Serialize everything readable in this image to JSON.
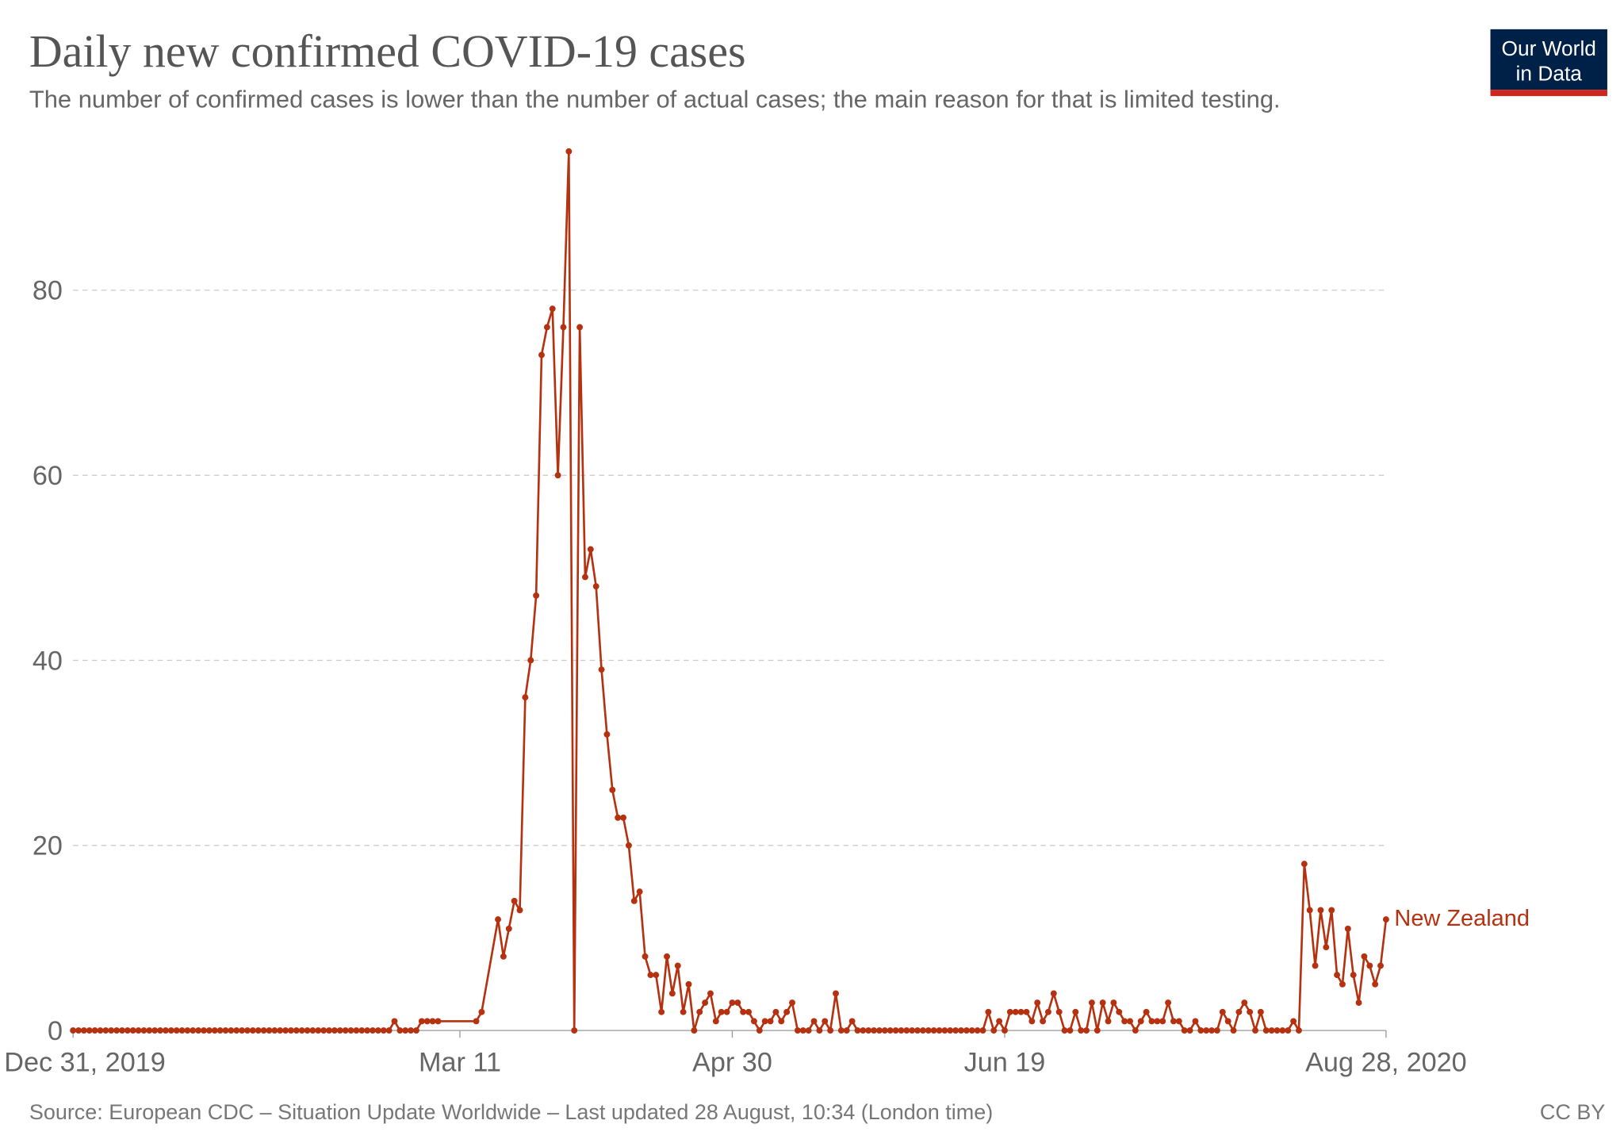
{
  "chart_data": {
    "type": "line",
    "title": "Daily new confirmed COVID-19 cases",
    "subtitle": "The number of confirmed cases is lower than the number of actual cases; the main reason for that is limited testing.",
    "source": "Source: European CDC – Situation Update Worldwide – Last updated 28 August, 10:34 (London time)",
    "x": [
      "2019-12-31",
      "2020-01-01",
      "2020-01-02",
      "2020-01-03",
      "2020-01-04",
      "2020-01-05",
      "2020-01-06",
      "2020-01-07",
      "2020-01-08",
      "2020-01-09",
      "2020-01-10",
      "2020-01-11",
      "2020-01-12",
      "2020-01-13",
      "2020-01-14",
      "2020-01-15",
      "2020-01-16",
      "2020-01-17",
      "2020-01-18",
      "2020-01-19",
      "2020-01-20",
      "2020-01-21",
      "2020-01-22",
      "2020-01-23",
      "2020-01-24",
      "2020-01-25",
      "2020-01-26",
      "2020-01-27",
      "2020-01-28",
      "2020-01-29",
      "2020-01-30",
      "2020-01-31",
      "2020-02-01",
      "2020-02-02",
      "2020-02-03",
      "2020-02-04",
      "2020-02-05",
      "2020-02-06",
      "2020-02-07",
      "2020-02-08",
      "2020-02-09",
      "2020-02-10",
      "2020-02-11",
      "2020-02-12",
      "2020-02-13",
      "2020-02-14",
      "2020-02-15",
      "2020-02-16",
      "2020-02-17",
      "2020-02-18",
      "2020-02-19",
      "2020-02-20",
      "2020-02-21",
      "2020-02-22",
      "2020-02-23",
      "2020-02-24",
      "2020-02-25",
      "2020-02-26",
      "2020-02-27",
      "2020-02-28",
      "2020-02-29",
      "2020-03-01",
      "2020-03-02",
      "2020-03-03",
      "2020-03-04",
      "2020-03-05",
      "2020-03-06",
      "2020-03-07",
      "2020-03-14",
      "2020-03-15",
      "2020-03-18",
      "2020-03-19",
      "2020-03-20",
      "2020-03-21",
      "2020-03-22",
      "2020-03-23",
      "2020-03-24",
      "2020-03-25",
      "2020-03-26",
      "2020-03-27",
      "2020-03-28",
      "2020-03-29",
      "2020-03-30",
      "2020-03-31",
      "2020-04-01",
      "2020-04-02",
      "2020-04-03",
      "2020-04-04",
      "2020-04-05",
      "2020-04-06",
      "2020-04-07",
      "2020-04-08",
      "2020-04-09",
      "2020-04-10",
      "2020-04-11",
      "2020-04-12",
      "2020-04-13",
      "2020-04-14",
      "2020-04-15",
      "2020-04-16",
      "2020-04-17",
      "2020-04-18",
      "2020-04-19",
      "2020-04-20",
      "2020-04-21",
      "2020-04-22",
      "2020-04-23",
      "2020-04-24",
      "2020-04-25",
      "2020-04-26",
      "2020-04-27",
      "2020-04-28",
      "2020-04-29",
      "2020-04-30",
      "2020-05-01",
      "2020-05-02",
      "2020-05-03",
      "2020-05-04",
      "2020-05-05",
      "2020-05-06",
      "2020-05-07",
      "2020-05-08",
      "2020-05-09",
      "2020-05-10",
      "2020-05-11",
      "2020-05-12",
      "2020-05-13",
      "2020-05-14",
      "2020-05-15",
      "2020-05-16",
      "2020-05-17",
      "2020-05-18",
      "2020-05-19",
      "2020-05-20",
      "2020-05-21",
      "2020-05-22",
      "2020-05-23",
      "2020-05-24",
      "2020-05-25",
      "2020-05-26",
      "2020-05-27",
      "2020-05-28",
      "2020-05-29",
      "2020-05-30",
      "2020-05-31",
      "2020-06-01",
      "2020-06-02",
      "2020-06-03",
      "2020-06-04",
      "2020-06-05",
      "2020-06-06",
      "2020-06-07",
      "2020-06-08",
      "2020-06-09",
      "2020-06-10",
      "2020-06-11",
      "2020-06-12",
      "2020-06-13",
      "2020-06-14",
      "2020-06-15",
      "2020-06-16",
      "2020-06-17",
      "2020-06-18",
      "2020-06-19",
      "2020-06-20",
      "2020-06-21",
      "2020-06-22",
      "2020-06-23",
      "2020-06-24",
      "2020-06-25",
      "2020-06-26",
      "2020-06-27",
      "2020-06-28",
      "2020-06-29",
      "2020-06-30",
      "2020-07-01",
      "2020-07-02",
      "2020-07-03",
      "2020-07-04",
      "2020-07-05",
      "2020-07-06",
      "2020-07-07",
      "2020-07-08",
      "2020-07-09",
      "2020-07-10",
      "2020-07-11",
      "2020-07-12",
      "2020-07-13",
      "2020-07-14",
      "2020-07-15",
      "2020-07-16",
      "2020-07-17",
      "2020-07-18",
      "2020-07-19",
      "2020-07-20",
      "2020-07-21",
      "2020-07-22",
      "2020-07-23",
      "2020-07-24",
      "2020-07-25",
      "2020-07-26",
      "2020-07-27",
      "2020-07-28",
      "2020-07-29",
      "2020-07-30",
      "2020-07-31",
      "2020-08-01",
      "2020-08-02",
      "2020-08-03",
      "2020-08-04",
      "2020-08-05",
      "2020-08-06",
      "2020-08-07",
      "2020-08-08",
      "2020-08-09",
      "2020-08-10",
      "2020-08-11",
      "2020-08-12",
      "2020-08-13",
      "2020-08-14",
      "2020-08-15",
      "2020-08-16",
      "2020-08-17",
      "2020-08-18",
      "2020-08-19",
      "2020-08-20",
      "2020-08-21",
      "2020-08-22",
      "2020-08-23",
      "2020-08-24",
      "2020-08-25",
      "2020-08-26",
      "2020-08-27",
      "2020-08-28"
    ],
    "series": [
      {
        "name": "New Zealand",
        "color": "#b5310f",
        "values": [
          0,
          0,
          0,
          0,
          0,
          0,
          0,
          0,
          0,
          0,
          0,
          0,
          0,
          0,
          0,
          0,
          0,
          0,
          0,
          0,
          0,
          0,
          0,
          0,
          0,
          0,
          0,
          0,
          0,
          0,
          0,
          0,
          0,
          0,
          0,
          0,
          0,
          0,
          0,
          0,
          0,
          0,
          0,
          0,
          0,
          0,
          0,
          0,
          0,
          0,
          0,
          0,
          0,
          0,
          0,
          0,
          0,
          0,
          0,
          1,
          0,
          0,
          0,
          0,
          1,
          1,
          1,
          1,
          1,
          2,
          12,
          8,
          11,
          14,
          13,
          36,
          40,
          47,
          73,
          76,
          78,
          60,
          76,
          95,
          0,
          76,
          49,
          52,
          48,
          39,
          32,
          26,
          23,
          23,
          20,
          14,
          15,
          8,
          6,
          6,
          2,
          8,
          4,
          7,
          2,
          5,
          0,
          2,
          3,
          4,
          1,
          2,
          2,
          3,
          3,
          2,
          2,
          1,
          0,
          1,
          1,
          2,
          1,
          2,
          3,
          0,
          0,
          0,
          1,
          0,
          1,
          0,
          4,
          0,
          0,
          1,
          0,
          0,
          0,
          0,
          0,
          0,
          0,
          0,
          0,
          0,
          0,
          0,
          0,
          0,
          0,
          0,
          0,
          0,
          0,
          0,
          0,
          0,
          0,
          0,
          2,
          0,
          1,
          0,
          2,
          2,
          2,
          2,
          1,
          3,
          1,
          2,
          4,
          2,
          0,
          0,
          2,
          0,
          0,
          3,
          0,
          3,
          1,
          3,
          2,
          1,
          1,
          0,
          1,
          2,
          1,
          1,
          1,
          3,
          1,
          1,
          0,
          0,
          1,
          0,
          0,
          0,
          0,
          2,
          1,
          0,
          2,
          3,
          2,
          0,
          2,
          0,
          0,
          0,
          0,
          0,
          1,
          0,
          18,
          13,
          7,
          13,
          9,
          13,
          6,
          5,
          11,
          6,
          3,
          8,
          7,
          5,
          7,
          12
        ]
      }
    ],
    "xlim": [
      "2019-12-31",
      "2020-08-28"
    ],
    "xticks": [
      {
        "value": "2019-12-31",
        "label": "Dec 31, 2019"
      },
      {
        "value": "2020-03-11",
        "label": "Mar 11"
      },
      {
        "value": "2020-04-30",
        "label": "Apr 30"
      },
      {
        "value": "2020-06-19",
        "label": "Jun 19"
      },
      {
        "value": "2020-08-28",
        "label": "Aug 28, 2020"
      }
    ],
    "ylim": [
      0,
      95
    ],
    "yticks": [
      0,
      20,
      40,
      60,
      80
    ],
    "grid": true
  },
  "logo": {
    "line1": "Our World",
    "line2": "in Data"
  },
  "license": "CC BY"
}
